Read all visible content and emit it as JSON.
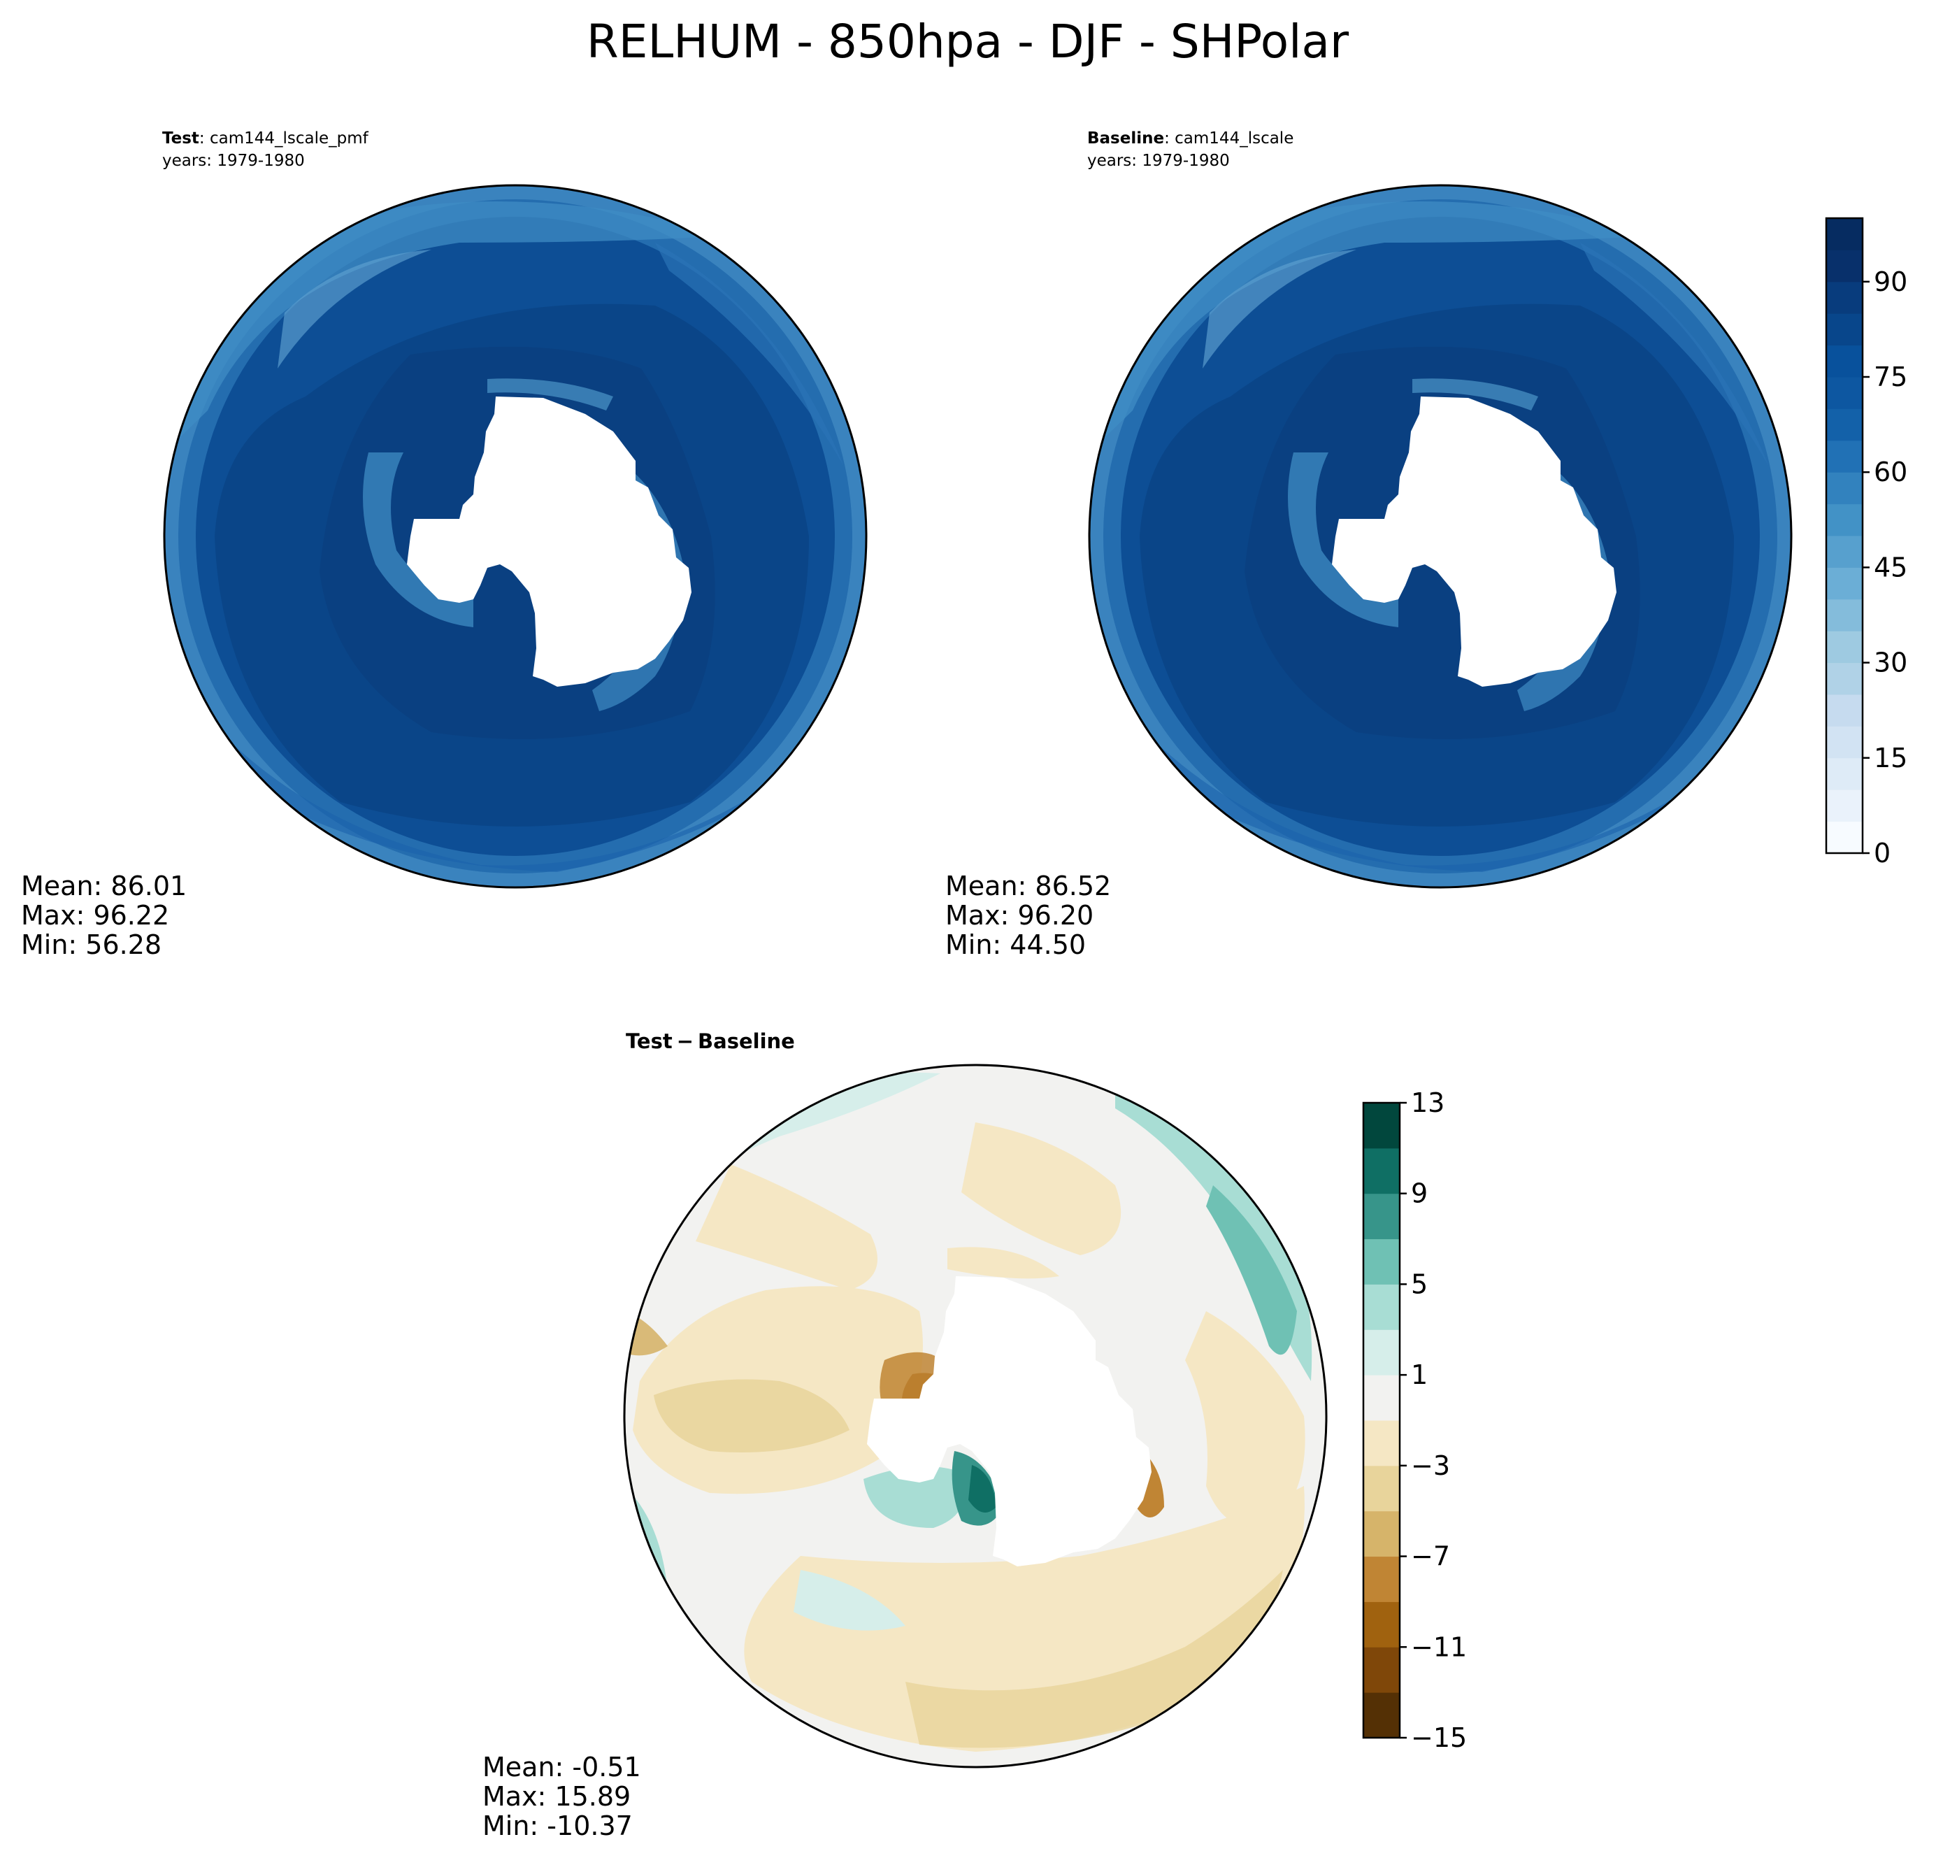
{
  "figure": {
    "title": "RELHUM - 850hpa - DJF - SHPolar"
  },
  "panels": {
    "test": {
      "label_bold": "Test",
      "label_case": ": cam144_lscale_pmf",
      "years": "years: 1979-1980",
      "stats": {
        "mean": "Mean: 86.01",
        "max": "Max: 96.22",
        "min": "Min: 56.28"
      }
    },
    "baseline": {
      "label_bold": "Baseline",
      "label_case": ": cam144_lscale",
      "years": "years: 1979-1980",
      "stats": {
        "mean": "Mean: 86.52",
        "max": "Max: 96.20",
        "min": "Min: 44.50"
      }
    },
    "diff": {
      "title_test": "Test",
      "title_minus": "−",
      "title_baseline": "Baseline",
      "stats": {
        "mean": "Mean: -0.51",
        "max": "Max: 15.89",
        "min": "Min: -10.37"
      }
    }
  },
  "colorbars": {
    "main": {
      "ticks": [
        "0",
        "15",
        "30",
        "45",
        "60",
        "75",
        "90"
      ],
      "tick_values": [
        0,
        15,
        30,
        45,
        60,
        75,
        90
      ],
      "range": [
        0,
        100
      ],
      "levels": 20,
      "colors": [
        "#f7fbff",
        "#eaf2fb",
        "#deebf7",
        "#d2e3f3",
        "#c6dbef",
        "#b0d2e7",
        "#9ecae1",
        "#84bcdb",
        "#6baed6",
        "#57a0ce",
        "#4292c6",
        "#3282be",
        "#2171b5",
        "#1361a9",
        "#0d57a1",
        "#08519c",
        "#08468b",
        "#083c7d",
        "#08306b",
        "#062c61"
      ]
    },
    "diff": {
      "ticks": [
        "13",
        "9",
        "5",
        "1",
        "−3",
        "−7",
        "−11",
        "−15"
      ],
      "tick_values": [
        13,
        9,
        5,
        1,
        -3,
        -7,
        -11,
        -15
      ],
      "range": [
        -15,
        13
      ],
      "levels": 14,
      "colors": [
        "#543005",
        "#7f4709",
        "#a0620f",
        "#c08534",
        "#d6b46a",
        "#e8d49b",
        "#f5e7c4",
        "#f2f2f0",
        "#d6eeea",
        "#a8ddd4",
        "#6fc1b4",
        "#37958a",
        "#0f6f64",
        "#01473d"
      ]
    }
  },
  "map_colors": {
    "land": "#ffffff",
    "coast": "#000000",
    "ocean_dark": "#0b4489",
    "ocean_mid": "#1960a9",
    "ocean_light": "#3f8cc4",
    "diff_neutral": "#f2f2f0"
  }
}
